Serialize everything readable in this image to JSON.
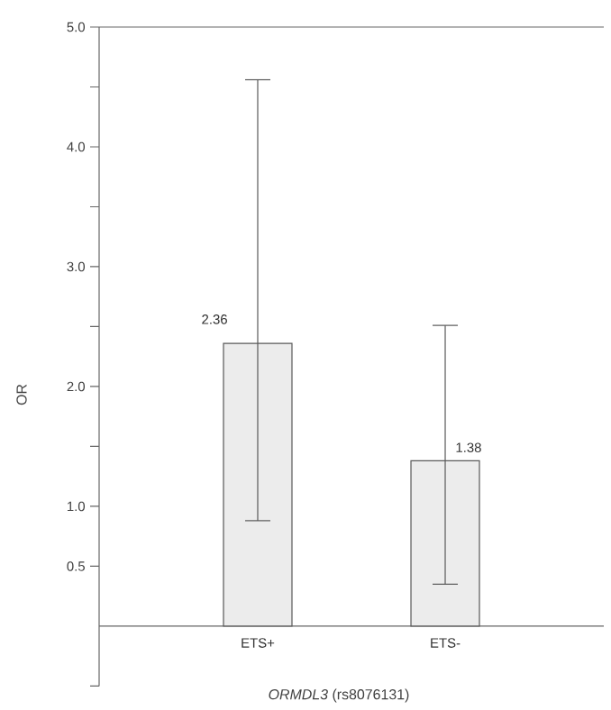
{
  "chart_data": {
    "type": "bar",
    "xlabel": "*ORMDL3* (rs8076131)",
    "ylabel": "OR",
    "categories": [
      "ETS+",
      "ETS-"
    ],
    "values": [
      2.36,
      1.38
    ],
    "errors": [
      [
        0.88,
        4.56
      ],
      [
        0.35,
        2.51
      ]
    ],
    "color": "#ececec",
    "data_labels": true,
    "ylim": [
      -0.5,
      5.0
    ],
    "yticks": [
      {
        "value": -0.5,
        "label": null
      },
      0.5,
      {
        "value": 1,
        "label": "1.0"
      },
      {
        "value": 1.5,
        "label": null
      },
      {
        "value": 2,
        "label": "2.0"
      },
      {
        "value": 2.5,
        "label": null
      },
      {
        "value": 3,
        "label": "3.0"
      },
      {
        "value": 3.5,
        "label": null
      },
      {
        "value": 4,
        "label": "4.0"
      },
      {
        "value": 4.5,
        "label": null
      },
      {
        "value": 5,
        "label": "5.0"
      }
    ]
  }
}
